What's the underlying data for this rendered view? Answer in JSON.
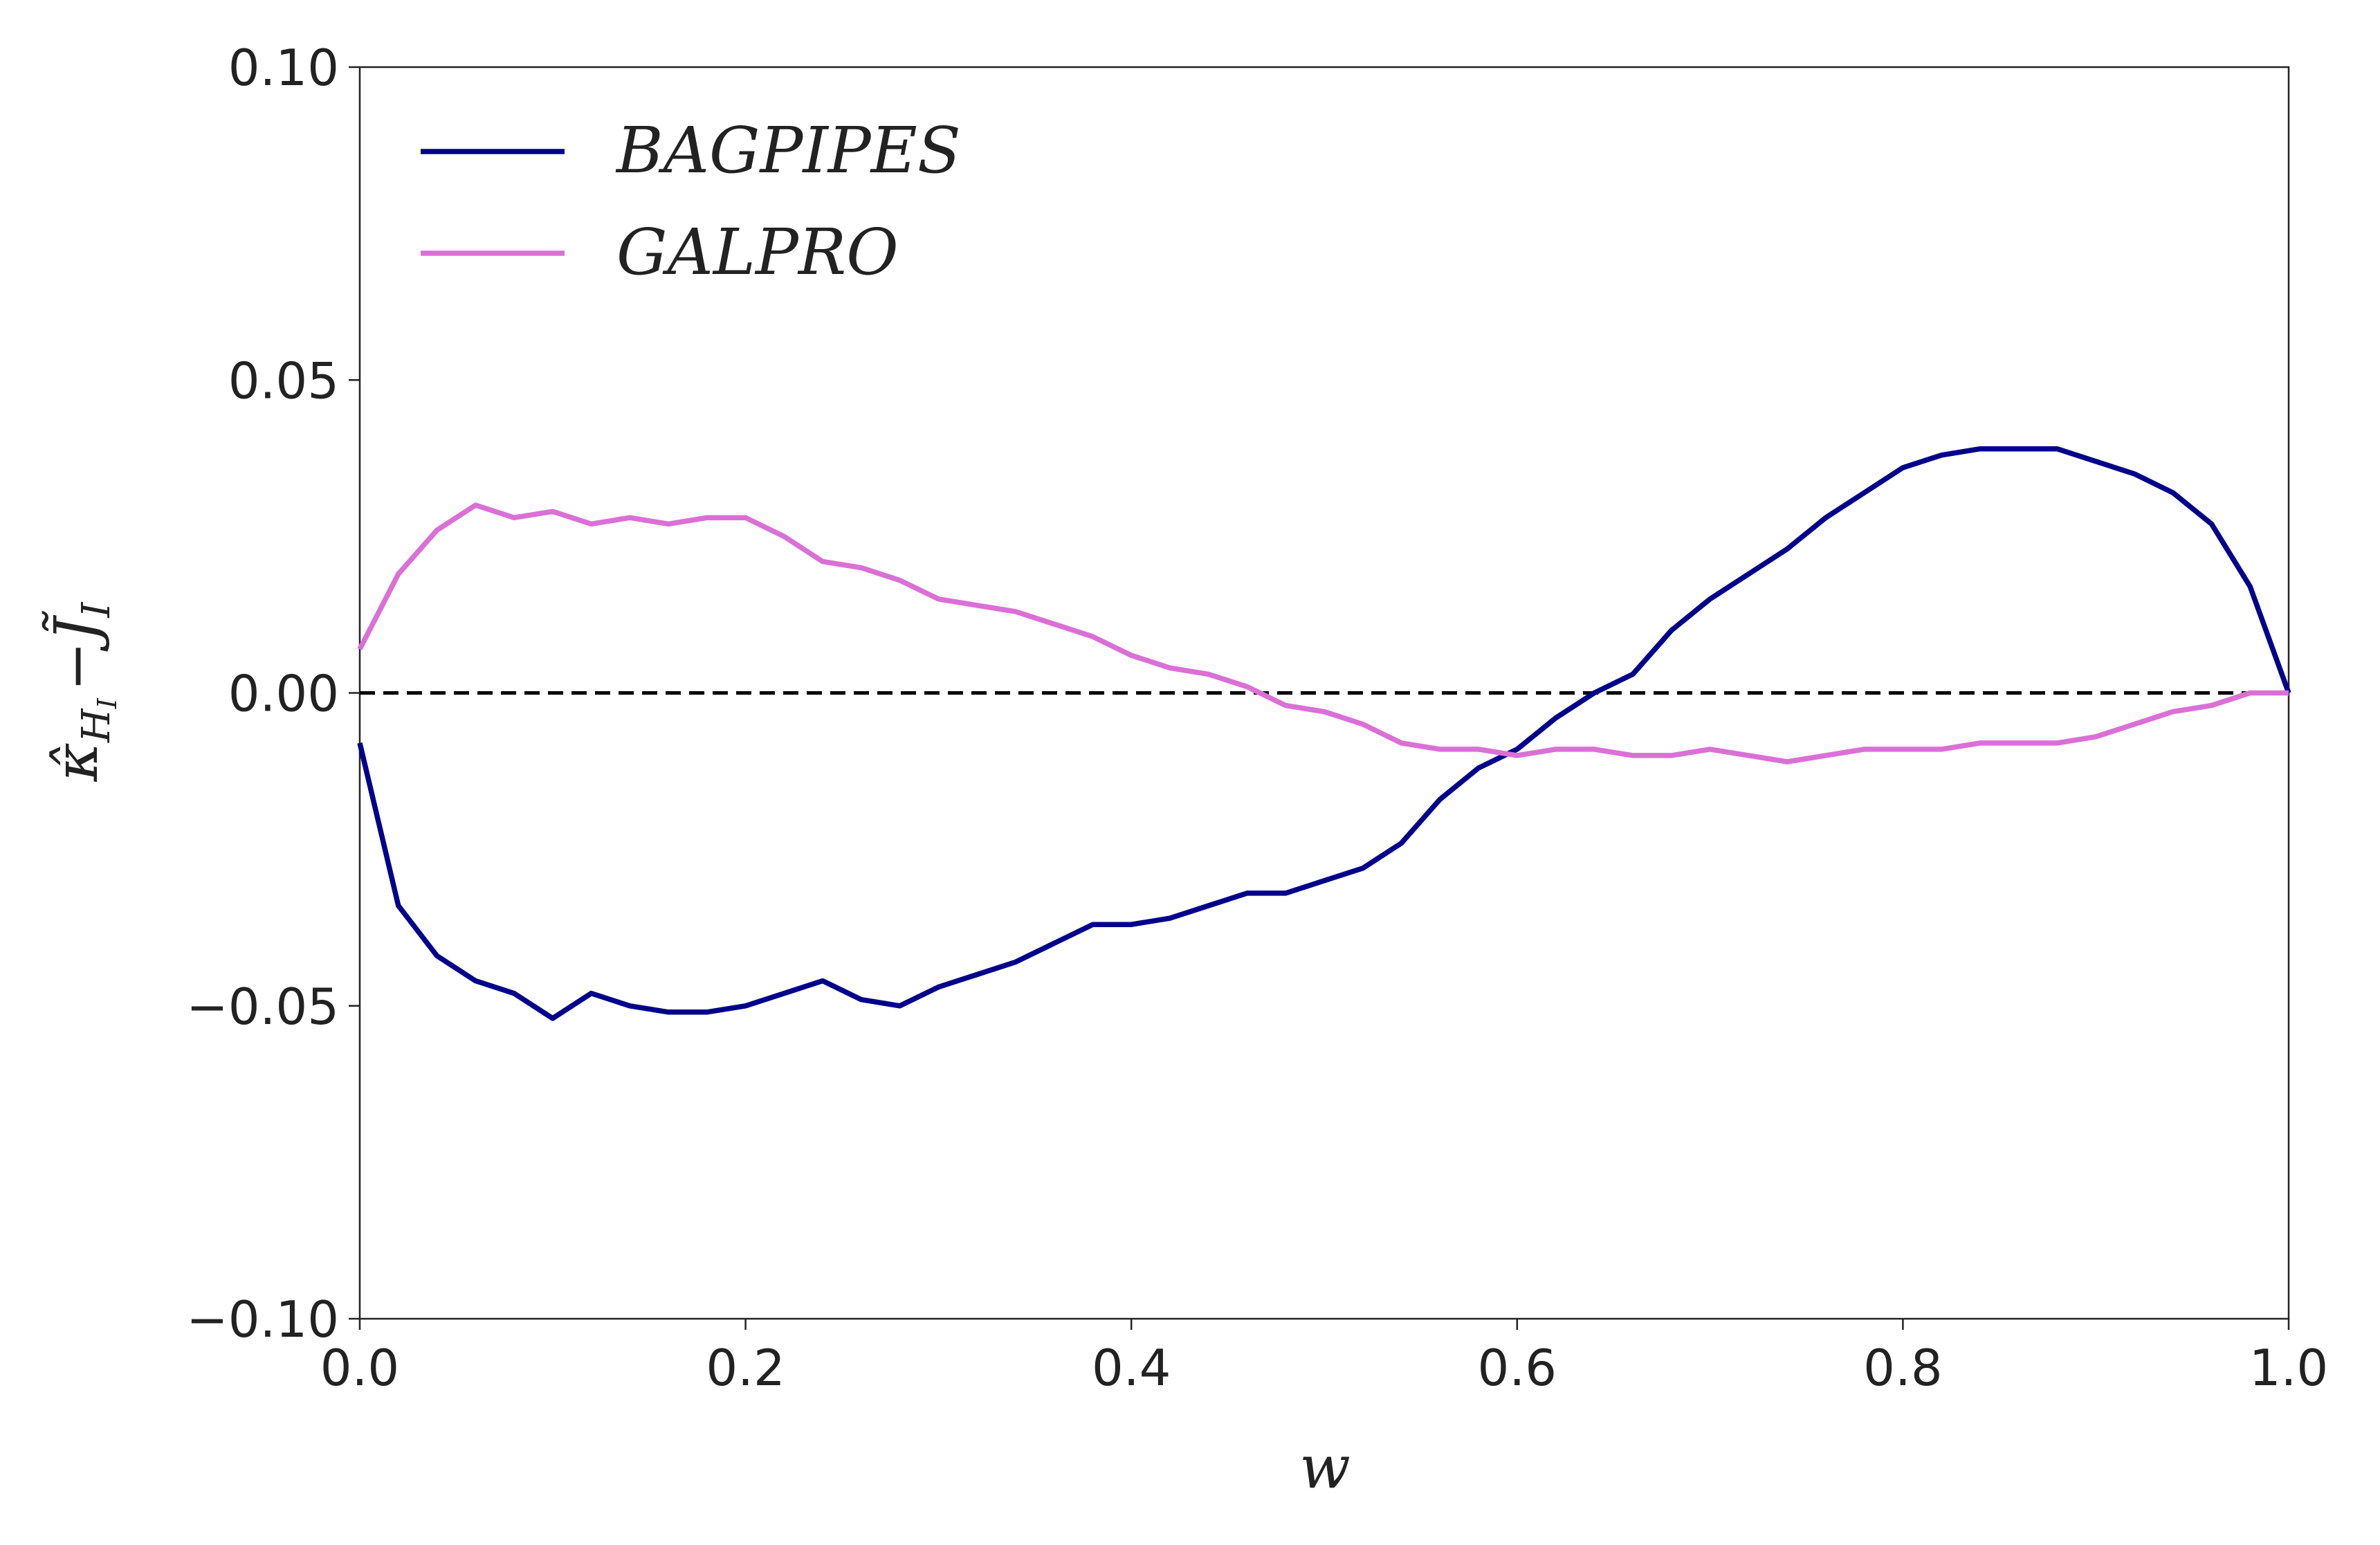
{
  "chart_data": {
    "type": "line",
    "xlabel": "w",
    "ylabel_parts": [
      "κ̂",
      "H",
      "I",
      "−",
      "J̃",
      "I"
    ],
    "x": [
      0,
      0.02,
      0.04,
      0.06,
      0.08,
      0.1,
      0.12,
      0.14,
      0.16,
      0.18,
      0.2,
      0.22,
      0.24,
      0.26,
      0.28,
      0.3,
      0.32,
      0.34,
      0.36,
      0.38,
      0.4,
      0.42,
      0.44,
      0.46,
      0.48,
      0.5,
      0.52,
      0.54,
      0.56,
      0.58,
      0.6,
      0.62,
      0.64,
      0.66,
      0.68,
      0.7,
      0.72,
      0.74,
      0.76,
      0.78,
      0.8,
      0.82,
      0.84,
      0.86,
      0.88,
      0.9,
      0.92,
      0.94,
      0.96,
      0.98,
      1
    ],
    "series": [
      {
        "name": "BAGPIPES",
        "color": "#00008b",
        "values": [
          -0.008,
          -0.034,
          -0.042,
          -0.046,
          -0.048,
          -0.052,
          -0.048,
          -0.05,
          -0.051,
          -0.051,
          -0.05,
          -0.048,
          -0.046,
          -0.049,
          -0.05,
          -0.047,
          -0.045,
          -0.043,
          -0.04,
          -0.037,
          -0.037,
          -0.036,
          -0.034,
          -0.032,
          -0.032,
          -0.03,
          -0.028,
          -0.024,
          -0.017,
          -0.012,
          -0.009,
          -0.004,
          0,
          0.003,
          0.01,
          0.015,
          0.019,
          0.023,
          0.028,
          0.032,
          0.036,
          0.038,
          0.039,
          0.039,
          0.039,
          0.037,
          0.035,
          0.032,
          0.027,
          0.017,
          0
        ]
      },
      {
        "name": "GALPRO",
        "color": "#da70d6",
        "values": [
          0.007,
          0.019,
          0.026,
          0.03,
          0.028,
          0.029,
          0.027,
          0.028,
          0.027,
          0.028,
          0.028,
          0.025,
          0.021,
          0.02,
          0.018,
          0.015,
          0.014,
          0.013,
          0.011,
          0.009,
          0.006,
          0.004,
          0.003,
          0.001,
          -0.002,
          -0.003,
          -0.005,
          -0.008,
          -0.009,
          -0.009,
          -0.01,
          -0.009,
          -0.009,
          -0.01,
          -0.01,
          -0.009,
          -0.01,
          -0.011,
          -0.01,
          -0.009,
          -0.009,
          -0.009,
          -0.008,
          -0.008,
          -0.008,
          -0.007,
          -0.005,
          -0.003,
          -0.002,
          0,
          0
        ]
      }
    ],
    "hline": 0,
    "xlim": [
      0,
      1
    ],
    "ylim": [
      -0.1,
      0.1
    ],
    "xticks": [
      {
        "value": 0,
        "label": "0.0"
      },
      0.2,
      0.4,
      0.6,
      0.8,
      {
        "value": 1,
        "label": "1.0"
      }
    ],
    "yticks": [
      {
        "value": 0.1,
        "label": "0.10"
      },
      {
        "value": 0.05,
        "label": "0.05"
      },
      {
        "value": 0,
        "label": "0.00"
      },
      {
        "value": -0.05,
        "label": "−0.05"
      },
      {
        "value": -0.1,
        "label": "−0.10"
      }
    ],
    "legend": "upper-left"
  }
}
